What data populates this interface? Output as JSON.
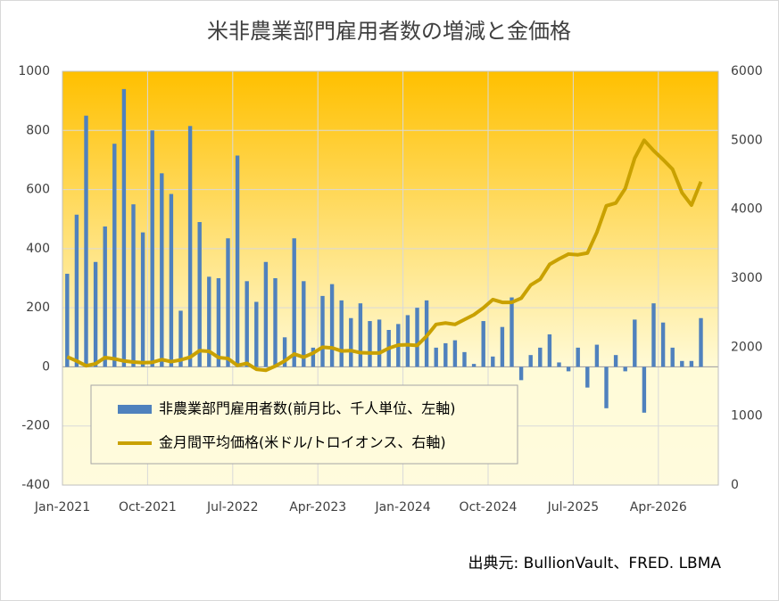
{
  "chart_data": {
    "type": "bar_line",
    "title": "米非農業部門雇用者数の増減と金価格",
    "categories": [
      "Jan-2021",
      null,
      null,
      null,
      null,
      null,
      null,
      null,
      null,
      "Oct-2021",
      null,
      null,
      null,
      null,
      null,
      null,
      null,
      null,
      "Jul-2022",
      null,
      null,
      null,
      null,
      null,
      null,
      null,
      null,
      "Apr-2023",
      null,
      null,
      null,
      null,
      null,
      null,
      null,
      null,
      "Jan-2024",
      null,
      null,
      null,
      null,
      null,
      null,
      null,
      null,
      "Oct-2024",
      null,
      null,
      null,
      null,
      null,
      null,
      null,
      null,
      "Jul-2025",
      null,
      null,
      null,
      null,
      null,
      null,
      null,
      null,
      "Apr-2026",
      null,
      null,
      null,
      null
    ],
    "series": [
      {
        "name": "非農業部門雇用者数(前月比、千人単位、左軸)",
        "color": "#4f81bd",
        "axis": "y",
        "values": [
          315,
          515,
          850,
          355,
          475,
          755,
          940,
          550,
          455,
          800,
          655,
          585,
          190,
          815,
          490,
          305,
          300,
          435,
          715,
          290,
          220,
          355,
          300,
          100,
          435,
          290,
          65,
          240,
          280,
          225,
          165,
          215,
          155,
          160,
          125,
          145,
          175,
          200,
          225,
          65,
          80,
          90,
          50,
          10,
          155,
          35,
          135,
          235,
          -45,
          40,
          65,
          110,
          15,
          -15,
          65,
          -70,
          75,
          -140,
          40,
          -15,
          160,
          -155,
          215,
          150,
          65,
          20,
          20,
          165
        ]
      },
      {
        "name": "金月間平均価格(米ドル/トロイオンス、右軸)",
        "color": "#c9a100",
        "axis": "y2",
        "values": [
          1860,
          1800,
          1730,
          1760,
          1850,
          1830,
          1800,
          1785,
          1775,
          1780,
          1820,
          1790,
          1815,
          1855,
          1950,
          1940,
          1850,
          1835,
          1735,
          1765,
          1680,
          1665,
          1725,
          1800,
          1900,
          1855,
          1915,
          2000,
          1990,
          1945,
          1950,
          1920,
          1915,
          1915,
          1985,
          2030,
          2035,
          2025,
          2160,
          2330,
          2350,
          2330,
          2400,
          2470,
          2570,
          2690,
          2650,
          2650,
          2710,
          2900,
          2985,
          3200,
          3280,
          3350,
          3340,
          3365,
          3665,
          4050,
          4090,
          4300,
          4740,
          5000,
          4850,
          4720,
          4580,
          4240,
          4060,
          4400
        ]
      }
    ],
    "ylim": [
      -400,
      1000
    ],
    "yticks": [
      -400,
      -200,
      0,
      200,
      400,
      600,
      800,
      1000
    ],
    "y2lim": [
      0,
      6000
    ],
    "y2ticks": [
      0,
      1000,
      2000,
      3000,
      4000,
      5000,
      6000
    ],
    "grid": true,
    "legend": "lower-left",
    "source": "出典元: BullionVault、FRED. LBMA"
  }
}
